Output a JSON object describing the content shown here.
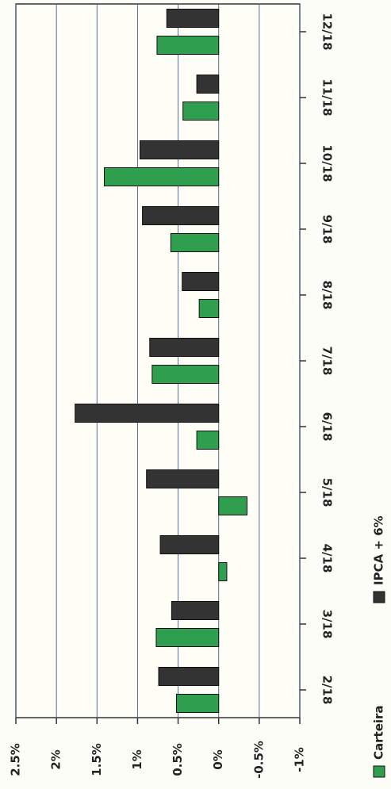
{
  "chart_data": {
    "type": "bar",
    "orientation": "horizontal",
    "categories": [
      "2/18",
      "3/18",
      "4/18",
      "5/18",
      "6/18",
      "7/18",
      "8/18",
      "9/18",
      "10/18",
      "11/18",
      "12/18"
    ],
    "series": [
      {
        "name": "Carteira",
        "color": "#2f9e4e",
        "values": [
          0.52,
          0.77,
          -0.1,
          -0.35,
          0.27,
          0.82,
          0.24,
          0.59,
          1.41,
          0.44,
          0.76
        ]
      },
      {
        "name": "IPCA + 6%",
        "color": "#333333",
        "values": [
          0.74,
          0.58,
          0.72,
          0.89,
          1.77,
          0.85,
          0.45,
          0.94,
          0.97,
          0.27,
          0.64
        ]
      }
    ],
    "xlim": [
      -1,
      2.5
    ],
    "xticks": [
      {
        "value": 2.5,
        "label": "2.5%"
      },
      {
        "value": 2,
        "label": "2%"
      },
      {
        "value": 1.5,
        "label": "1.5%"
      },
      {
        "value": 1,
        "label": "1%"
      },
      {
        "value": 0.5,
        "label": "0.5%"
      },
      {
        "value": 0,
        "label": "0%"
      },
      {
        "value": -0.5,
        "label": "-0.5%"
      },
      {
        "value": -1,
        "label": "-1%"
      }
    ],
    "grid": true
  }
}
